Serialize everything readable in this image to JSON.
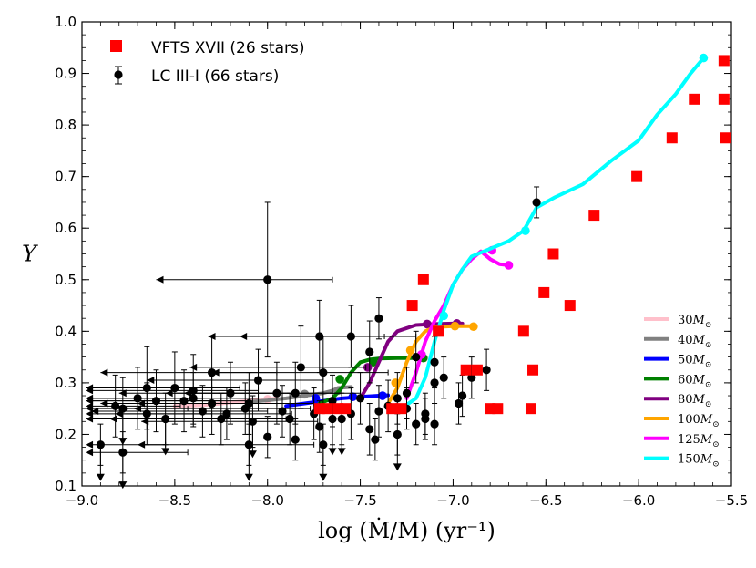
{
  "chart_data": {
    "type": "scatter",
    "title": "",
    "xlabel": "log (Ṁ/M) (yr⁻¹)",
    "ylabel": "Y",
    "xlim": [
      -9.0,
      -5.5
    ],
    "ylim": [
      0.1,
      1.0
    ],
    "xticks": [
      -9.0,
      -8.5,
      -8.0,
      -7.5,
      -7.0,
      -6.5,
      -6.0,
      -5.5
    ],
    "xtick_labels": [
      "−9.0",
      "−8.5",
      "−8.0",
      "−7.5",
      "−7.0",
      "−6.5",
      "−6.0",
      "−5.5"
    ],
    "yticks": [
      0.1,
      0.2,
      0.3,
      0.4,
      0.5,
      0.6,
      0.7,
      0.8,
      0.9,
      1.0
    ],
    "ytick_labels": [
      "0.1",
      "0.2",
      "0.3",
      "0.4",
      "0.5",
      "0.6",
      "0.7",
      "0.8",
      "0.9",
      "1.0"
    ],
    "legend_top": [
      {
        "label": "VFTS XVII (26 stars)",
        "marker": "square",
        "color": "#ff0000"
      },
      {
        "label": "LC III-I (66 stars)",
        "marker": "circle-errorbar",
        "color": "#000000"
      }
    ],
    "legend_placement": "top-left",
    "mass_legend_placement": "bottom-right",
    "vfts": {
      "name": "VFTS XVII (26 stars)",
      "color": "#ff0000",
      "points": [
        [
          -5.54,
          0.925
        ],
        [
          -5.54,
          0.85
        ],
        [
          -5.53,
          0.775
        ],
        [
          -5.7,
          0.85
        ],
        [
          -5.82,
          0.775
        ],
        [
          -6.01,
          0.7
        ],
        [
          -6.24,
          0.625
        ],
        [
          -6.46,
          0.55
        ],
        [
          -6.51,
          0.475
        ],
        [
          -6.37,
          0.45
        ],
        [
          -6.62,
          0.4
        ],
        [
          -6.57,
          0.325
        ],
        [
          -6.58,
          0.25
        ],
        [
          -6.76,
          0.25
        ],
        [
          -6.8,
          0.25
        ],
        [
          -6.87,
          0.325
        ],
        [
          -6.93,
          0.325
        ],
        [
          -7.28,
          0.25
        ],
        [
          -7.33,
          0.25
        ],
        [
          -7.58,
          0.25
        ],
        [
          -7.68,
          0.25
        ],
        [
          -7.72,
          0.25
        ],
        [
          -7.62,
          0.25
        ],
        [
          -7.16,
          0.5
        ],
        [
          -7.08,
          0.4
        ],
        [
          -7.22,
          0.45
        ]
      ]
    },
    "lc": {
      "name": "LC III-I (66 stars)",
      "color": "#000000",
      "points": [
        {
          "x": -8.0,
          "y": 0.5,
          "xlim": true,
          "yerr": 0.15
        },
        {
          "x": -6.55,
          "y": 0.65,
          "yerr": 0.03
        },
        {
          "x": -7.4,
          "y": 0.425,
          "yerr": 0.04
        },
        {
          "x": -7.72,
          "y": 0.39,
          "xlim": true,
          "yerr": 0.07
        },
        {
          "x": -7.55,
          "y": 0.39,
          "xlim": true,
          "yerr": 0.06
        },
        {
          "x": -7.45,
          "y": 0.36,
          "yerr": 0.06
        },
        {
          "x": -7.2,
          "y": 0.35,
          "yerr": 0.05
        },
        {
          "x": -7.1,
          "y": 0.34,
          "yerr": 0.05
        },
        {
          "x": -7.82,
          "y": 0.33,
          "xlim": true,
          "yerr": 0.08
        },
        {
          "x": -7.7,
          "y": 0.32,
          "xlim": true,
          "yerr": 0.07
        },
        {
          "x": -8.3,
          "y": 0.32,
          "xlim": true,
          "yerr": 0.07
        },
        {
          "x": -8.05,
          "y": 0.305,
          "xlim": true,
          "yerr": 0.06
        },
        {
          "x": -7.1,
          "y": 0.3,
          "yerr": 0.04
        },
        {
          "x": -7.05,
          "y": 0.31,
          "yerr": 0.04
        },
        {
          "x": -6.9,
          "y": 0.31,
          "yerr": 0.04
        },
        {
          "x": -6.82,
          "y": 0.325,
          "yerr": 0.04
        },
        {
          "x": -6.95,
          "y": 0.275,
          "yerr": 0.04
        },
        {
          "x": -8.65,
          "y": 0.29,
          "xlim": true,
          "yerr": 0.08
        },
        {
          "x": -8.5,
          "y": 0.29,
          "xlim": true,
          "yerr": 0.07
        },
        {
          "x": -8.4,
          "y": 0.285,
          "xlim": true,
          "yerr": 0.07
        },
        {
          "x": -8.2,
          "y": 0.28,
          "xlim": true,
          "yerr": 0.06
        },
        {
          "x": -7.95,
          "y": 0.28,
          "xlim": true,
          "yerr": 0.06
        },
        {
          "x": -7.85,
          "y": 0.28,
          "xlim": true,
          "yerr": 0.06
        },
        {
          "x": -8.7,
          "y": 0.27,
          "xlim": true,
          "yerr": 0.06
        },
        {
          "x": -8.6,
          "y": 0.265,
          "xlim": true,
          "yerr": 0.06
        },
        {
          "x": -8.45,
          "y": 0.265,
          "xlim": true,
          "yerr": 0.06
        },
        {
          "x": -8.3,
          "y": 0.26,
          "xlim": true,
          "yerr": 0.06
        },
        {
          "x": -8.1,
          "y": 0.26,
          "xlim": true,
          "yerr": 0.06
        },
        {
          "x": -7.65,
          "y": 0.265,
          "yerr": 0.05
        },
        {
          "x": -7.5,
          "y": 0.27,
          "yerr": 0.05
        },
        {
          "x": -7.3,
          "y": 0.27,
          "yerr": 0.05
        },
        {
          "x": -7.25,
          "y": 0.28,
          "yerr": 0.05
        },
        {
          "x": -8.78,
          "y": 0.25,
          "xlim": true,
          "yerr": 0.06,
          "ylim": true
        },
        {
          "x": -8.65,
          "y": 0.24,
          "xlim": true,
          "yerr": 0.06
        },
        {
          "x": -8.82,
          "y": 0.255,
          "xlim": true,
          "yerr": 0.06
        },
        {
          "x": -8.35,
          "y": 0.245,
          "xlim": true,
          "yerr": 0.05
        },
        {
          "x": -8.22,
          "y": 0.24,
          "xlim": true,
          "yerr": 0.05
        },
        {
          "x": -8.12,
          "y": 0.25,
          "xlim": true,
          "yerr": 0.05
        },
        {
          "x": -7.92,
          "y": 0.245,
          "yerr": 0.05
        },
        {
          "x": -7.75,
          "y": 0.24,
          "yerr": 0.05
        },
        {
          "x": -7.55,
          "y": 0.24,
          "yerr": 0.05
        },
        {
          "x": -7.4,
          "y": 0.245,
          "yerr": 0.05
        },
        {
          "x": -7.35,
          "y": 0.255,
          "yerr": 0.05
        },
        {
          "x": -7.25,
          "y": 0.25,
          "yerr": 0.04
        },
        {
          "x": -7.15,
          "y": 0.24,
          "yerr": 0.04
        },
        {
          "x": -8.55,
          "y": 0.23,
          "xlim": true,
          "yerr": 0.05,
          "ylim": true
        },
        {
          "x": -8.25,
          "y": 0.23,
          "xlim": true,
          "yerr": 0.05
        },
        {
          "x": -8.08,
          "y": 0.225,
          "xlim": true,
          "yerr": 0.05,
          "ylim": true
        },
        {
          "x": -7.88,
          "y": 0.23,
          "yerr": 0.05
        },
        {
          "x": -7.72,
          "y": 0.215,
          "yerr": 0.05
        },
        {
          "x": -7.6,
          "y": 0.23,
          "yerr": 0.05,
          "ylim": true
        },
        {
          "x": -7.45,
          "y": 0.21,
          "yerr": 0.05
        },
        {
          "x": -7.2,
          "y": 0.22,
          "yerr": 0.04
        },
        {
          "x": -7.15,
          "y": 0.23,
          "yerr": 0.04
        },
        {
          "x": -8.9,
          "y": 0.18,
          "xlim": true,
          "ylim": true,
          "yerr": 0.04
        },
        {
          "x": -8.78,
          "y": 0.165,
          "xlim": true,
          "ylim": true,
          "yerr": 0.04
        },
        {
          "x": -8.1,
          "y": 0.18,
          "xlim": true,
          "ylim": true,
          "yerr": 0.04
        },
        {
          "x": -8.0,
          "y": 0.195,
          "yerr": 0.04
        },
        {
          "x": -7.85,
          "y": 0.19,
          "yerr": 0.04
        },
        {
          "x": -7.7,
          "y": 0.18,
          "yerr": 0.04,
          "ylim": true
        },
        {
          "x": -7.42,
          "y": 0.19,
          "yerr": 0.04
        },
        {
          "x": -7.3,
          "y": 0.2,
          "yerr": 0.04,
          "ylim": true
        },
        {
          "x": -7.1,
          "y": 0.22,
          "yerr": 0.04
        },
        {
          "x": -6.97,
          "y": 0.26,
          "yerr": 0.04
        },
        {
          "x": -7.65,
          "y": 0.23,
          "yerr": 0.05,
          "ylim": true
        },
        {
          "x": -8.4,
          "y": 0.27,
          "xlim": true,
          "yerr": 0.05
        }
      ]
    },
    "tracks": [
      {
        "name": "30",
        "label": "30",
        "color": "#ffc0cb",
        "x": [
          -8.5,
          -8.4,
          -8.3,
          -8.2,
          -8.1,
          -8.0,
          -7.95
        ],
        "y": [
          0.255,
          0.256,
          0.258,
          0.262,
          0.265,
          0.268,
          0.27
        ],
        "dots": [
          [
            -8.0,
            0.268
          ]
        ]
      },
      {
        "name": "40",
        "label": "40",
        "color": "#808080",
        "x": [
          -8.1,
          -8.0,
          -7.9,
          -7.8,
          -7.7,
          -7.65,
          -7.62,
          -7.55
        ],
        "y": [
          0.263,
          0.266,
          0.27,
          0.275,
          0.28,
          0.285,
          0.29,
          0.292
        ],
        "dots": [
          [
            -7.8,
            0.278
          ],
          [
            -7.62,
            0.285
          ]
        ]
      },
      {
        "name": "50",
        "label": "50",
        "color": "#0000ff",
        "x": [
          -7.9,
          -7.8,
          -7.7,
          -7.6,
          -7.5,
          -7.4,
          -7.35
        ],
        "y": [
          0.255,
          0.26,
          0.265,
          0.27,
          0.273,
          0.275,
          0.276
        ],
        "dots": [
          [
            -7.74,
            0.27
          ],
          [
            -7.54,
            0.273
          ],
          [
            -7.38,
            0.275
          ]
        ]
      },
      {
        "name": "60",
        "label": "60",
        "color": "#008000",
        "x": [
          -7.72,
          -7.65,
          -7.6,
          -7.55,
          -7.5,
          -7.45,
          -7.4,
          -7.3,
          -7.2,
          -7.15
        ],
        "y": [
          0.26,
          0.27,
          0.29,
          0.32,
          0.34,
          0.345,
          0.347,
          0.348,
          0.348,
          0.348
        ],
        "dots": [
          [
            -7.61,
            0.307
          ],
          [
            -7.43,
            0.34
          ],
          [
            -7.16,
            0.348
          ]
        ]
      },
      {
        "name": "80",
        "label": "80",
        "color": "#800080",
        "x": [
          -7.5,
          -7.45,
          -7.4,
          -7.35,
          -7.3,
          -7.2,
          -7.1,
          -7.0,
          -6.95
        ],
        "y": [
          0.27,
          0.3,
          0.34,
          0.38,
          0.4,
          0.412,
          0.414,
          0.415,
          0.415
        ],
        "dots": [
          [
            -7.46,
            0.33
          ],
          [
            -7.14,
            0.414
          ],
          [
            -6.98,
            0.415
          ]
        ]
      },
      {
        "name": "100",
        "label": "100",
        "color": "#ffa500",
        "x": [
          -7.35,
          -7.3,
          -7.25,
          -7.2,
          -7.15,
          -7.1,
          -7.0,
          -6.9
        ],
        "y": [
          0.26,
          0.29,
          0.34,
          0.38,
          0.4,
          0.408,
          0.41,
          0.41
        ],
        "dots": [
          [
            -7.31,
            0.3
          ],
          [
            -7.23,
            0.363
          ],
          [
            -6.99,
            0.41
          ],
          [
            -6.89,
            0.409
          ]
        ]
      },
      {
        "name": "125",
        "label": "125",
        "color": "#ff00ff",
        "x": [
          -7.25,
          -7.2,
          -7.15,
          -7.1,
          -7.05,
          -7.0,
          -6.95,
          -6.9,
          -6.85,
          -6.8,
          -6.75,
          -6.7
        ],
        "y": [
          0.27,
          0.32,
          0.38,
          0.42,
          0.45,
          0.49,
          0.52,
          0.54,
          0.555,
          0.54,
          0.53,
          0.528
        ],
        "dots": [
          [
            -7.17,
            0.355
          ],
          [
            -6.79,
            0.557
          ],
          [
            -6.7,
            0.528
          ]
        ]
      },
      {
        "name": "150",
        "label": "150",
        "color": "#00ffff",
        "x": [
          -7.28,
          -7.2,
          -7.15,
          -7.1,
          -7.05,
          -7.0,
          -6.95,
          -6.9,
          -6.8,
          -6.7,
          -6.62,
          -6.55,
          -6.45,
          -6.3,
          -6.15,
          -6.0,
          -5.9,
          -5.8,
          -5.72,
          -5.65
        ],
        "y": [
          0.25,
          0.27,
          0.31,
          0.38,
          0.44,
          0.49,
          0.52,
          0.545,
          0.56,
          0.575,
          0.595,
          0.64,
          0.66,
          0.685,
          0.73,
          0.77,
          0.82,
          0.86,
          0.9,
          0.93
        ],
        "dots": [
          [
            -7.05,
            0.43
          ],
          [
            -6.61,
            0.595
          ],
          [
            -5.65,
            0.93
          ]
        ]
      }
    ],
    "mass_unit": "M",
    "mass_unit_sub": "⊙"
  }
}
